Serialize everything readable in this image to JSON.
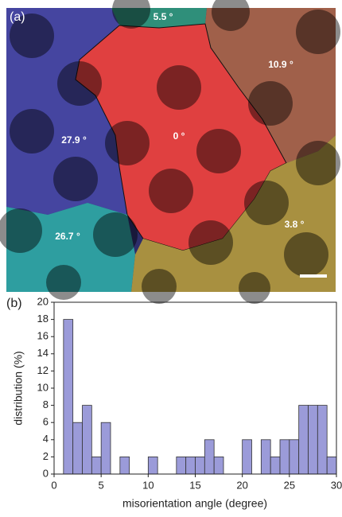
{
  "panel_a": {
    "label": "(a)",
    "angles": [
      "5.5 °",
      "10.9 °",
      "27.9 °",
      "0 °",
      "26.7 °",
      "3.8 °"
    ]
  },
  "chart_data": {
    "type": "histogram",
    "panel_label": "(b)",
    "xlabel": "misorientation angle (degree)",
    "ylabel": "distribution (%)",
    "bins": [
      0,
      1,
      2,
      3,
      4,
      5,
      6,
      7,
      8,
      9,
      10,
      11,
      12,
      13,
      14,
      15,
      16,
      17,
      18,
      19,
      20,
      21,
      22,
      23,
      24,
      25,
      26,
      27,
      28,
      29,
      30
    ],
    "values": [
      0,
      18,
      6,
      8,
      2,
      6,
      0,
      2,
      0,
      0,
      2,
      0,
      0,
      2,
      2,
      2,
      4,
      2,
      0,
      0,
      4,
      0,
      4,
      2,
      4,
      4,
      8,
      8,
      8,
      2
    ],
    "color": "#9b9bd9",
    "xlim": [
      0,
      30
    ],
    "xticks": [
      0,
      5,
      10,
      15,
      20,
      25,
      30
    ],
    "ylim": [
      0,
      20
    ],
    "yticks": [
      0,
      2,
      4,
      6,
      8,
      10,
      12,
      14,
      16,
      18,
      20
    ]
  }
}
